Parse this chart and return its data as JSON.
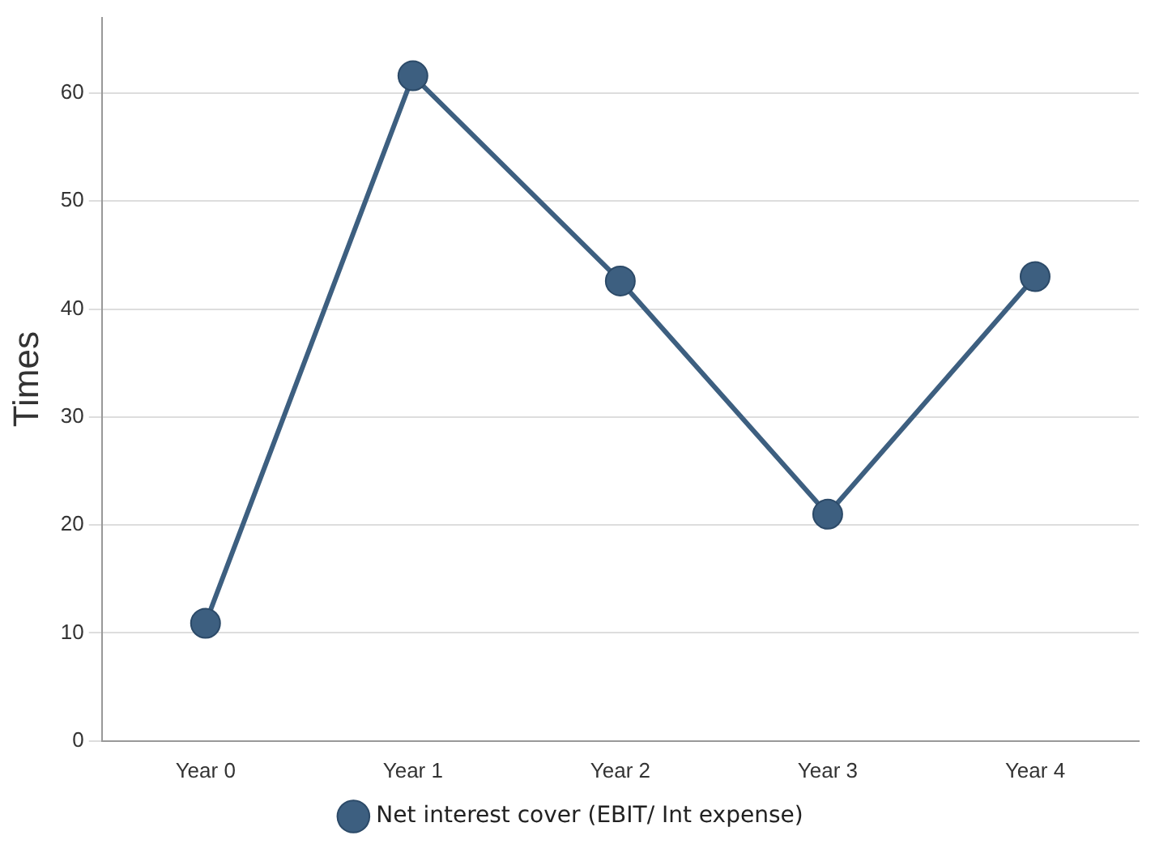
{
  "chart_data": {
    "type": "line",
    "ylabel": "Times",
    "categories": [
      "Year 0",
      "Year 1",
      "Year 2",
      "Year 3",
      "Year 4"
    ],
    "series": [
      {
        "name": "Net interest cover (EBIT/ Int expense)",
        "color": "#3d5f80",
        "values": [
          10.9,
          61.6,
          42.6,
          21,
          43
        ]
      }
    ],
    "ylim": [
      0,
      67
    ],
    "yticks": [
      0,
      10,
      20,
      30,
      40,
      50,
      60
    ],
    "grid": "y",
    "legend": "bottom",
    "marker": "circle",
    "line_style": "solid"
  }
}
